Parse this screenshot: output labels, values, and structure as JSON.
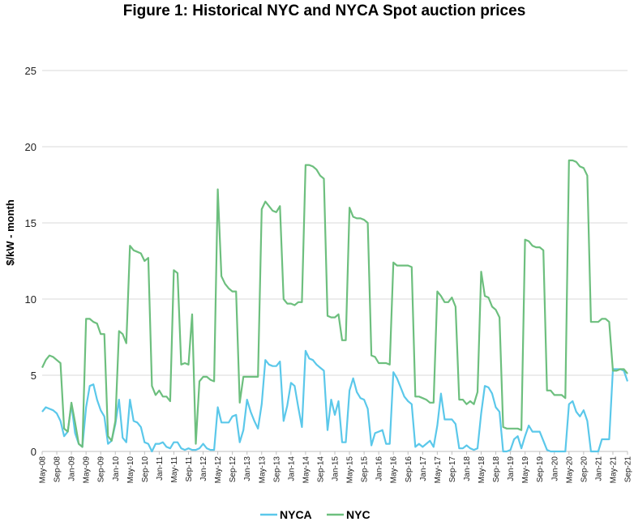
{
  "chart_data": {
    "type": "line",
    "title": "Figure 1: Historical NYC and NYCA Spot auction prices",
    "ylabel": "$/kW - month",
    "xlabel": "",
    "ylim": [
      0,
      25
    ],
    "yticks": [
      0,
      5,
      10,
      15,
      20,
      25
    ],
    "grid": true,
    "legend_position": "bottom-center",
    "x_tick_labels": [
      "May-08",
      "Sep-08",
      "Jan-09",
      "May-09",
      "Sep-09",
      "Jan-10",
      "May-10",
      "Sep-10",
      "Jan-11",
      "May-11",
      "Sep-11",
      "Jan-12",
      "May-12",
      "Sep-12",
      "Jan-13",
      "May-13",
      "Sep-13",
      "Jan-14",
      "May-14",
      "Sep-14",
      "Jan-15",
      "May-15",
      "Sep-15",
      "Jan-16",
      "May-16",
      "Sep-16",
      "Jan-17",
      "May-17",
      "Sep-17",
      "Jan-18",
      "May-18",
      "Sep-18",
      "Jan-19",
      "May-19",
      "Sep-19",
      "Jan-20",
      "May-20",
      "Sep-20",
      "Jan-21",
      "May-21",
      "Sep-21"
    ],
    "x_start": "May-08",
    "x_end": "Sep-21",
    "series": [
      {
        "name": "NYCA",
        "color": "#5bc8ea",
        "values": [
          2.6,
          2.9,
          2.8,
          2.7,
          2.5,
          2.0,
          1.0,
          1.3,
          3.1,
          1.2,
          0.5,
          0.3,
          2.9,
          4.3,
          4.4,
          3.4,
          2.7,
          2.3,
          0.5,
          0.7,
          1.8,
          3.4,
          0.9,
          0.6,
          3.4,
          2.0,
          1.9,
          1.6,
          0.6,
          0.5,
          0.0,
          0.5,
          0.5,
          0.6,
          0.3,
          0.2,
          0.6,
          0.6,
          0.2,
          0.1,
          0.2,
          0.1,
          0.1,
          0.2,
          0.5,
          0.2,
          0.1,
          0.1,
          2.9,
          1.9,
          1.9,
          1.9,
          2.3,
          2.4,
          0.6,
          1.4,
          3.4,
          2.6,
          2.0,
          1.5,
          3.1,
          6.0,
          5.7,
          5.6,
          5.6,
          5.9,
          2.0,
          3.0,
          4.5,
          4.3,
          2.9,
          1.6,
          6.6,
          6.1,
          6.0,
          5.7,
          5.5,
          5.3,
          1.4,
          3.4,
          2.4,
          3.3,
          0.6,
          0.6,
          4.0,
          4.8,
          3.9,
          3.5,
          3.4,
          2.8,
          0.4,
          1.2,
          1.3,
          1.4,
          0.5,
          0.5,
          5.2,
          4.8,
          4.2,
          3.6,
          3.3,
          3.1,
          0.3,
          0.5,
          0.3,
          0.5,
          0.7,
          0.3,
          1.7,
          3.8,
          2.1,
          2.1,
          2.1,
          1.8,
          0.2,
          0.2,
          0.4,
          0.2,
          0.1,
          0.2,
          2.5,
          4.3,
          4.2,
          3.8,
          2.9,
          2.6,
          0.0,
          0.0,
          0.1,
          0.8,
          1.0,
          0.2,
          1.0,
          1.7,
          1.3,
          1.3,
          1.3,
          0.7,
          0.1,
          0.0,
          0.0,
          0.0,
          0.0,
          0.0,
          3.1,
          3.3,
          2.6,
          2.3,
          2.7,
          2.0,
          0.0,
          0.0,
          0.0,
          0.8,
          0.8,
          0.8,
          5.4,
          5.4,
          5.4,
          5.3,
          4.6
        ]
      },
      {
        "name": "NYC",
        "color": "#6dbf7e",
        "values": [
          5.5,
          6.0,
          6.3,
          6.2,
          6.0,
          5.8,
          1.5,
          1.3,
          3.2,
          1.9,
          0.5,
          0.3,
          8.7,
          8.7,
          8.5,
          8.4,
          7.7,
          7.7,
          1.0,
          0.7,
          2.0,
          7.9,
          7.7,
          7.1,
          13.5,
          13.2,
          13.1,
          13.0,
          12.5,
          12.7,
          4.3,
          3.7,
          4.0,
          3.6,
          3.6,
          3.3,
          11.9,
          11.7,
          5.7,
          5.8,
          5.7,
          9.0,
          0.5,
          4.6,
          4.9,
          4.9,
          4.7,
          4.6,
          17.2,
          11.5,
          11.0,
          10.7,
          10.5,
          10.5,
          3.2,
          4.9,
          4.9,
          4.9,
          4.9,
          4.9,
          15.9,
          16.4,
          16.1,
          15.8,
          15.7,
          16.1,
          10.0,
          9.7,
          9.7,
          9.6,
          9.8,
          9.8,
          18.8,
          18.8,
          18.7,
          18.5,
          18.1,
          17.9,
          8.9,
          8.8,
          8.8,
          9.0,
          7.3,
          7.3,
          16.0,
          15.4,
          15.3,
          15.3,
          15.2,
          15.0,
          6.3,
          6.2,
          5.8,
          5.8,
          5.8,
          5.7,
          12.4,
          12.2,
          12.2,
          12.2,
          12.2,
          12.1,
          3.6,
          3.6,
          3.5,
          3.4,
          3.2,
          3.2,
          10.5,
          10.2,
          9.8,
          9.8,
          10.1,
          9.5,
          3.4,
          3.4,
          3.1,
          3.3,
          3.1,
          3.9,
          11.8,
          10.2,
          10.1,
          9.5,
          9.3,
          8.8,
          1.6,
          1.5,
          1.5,
          1.5,
          1.5,
          1.4,
          13.9,
          13.8,
          13.5,
          13.4,
          13.4,
          13.2,
          4.0,
          4.0,
          3.7,
          3.7,
          3.7,
          3.5,
          19.1,
          19.1,
          19.0,
          18.7,
          18.6,
          18.1,
          8.5,
          8.5,
          8.5,
          8.7,
          8.7,
          8.5,
          5.3,
          5.3,
          5.4,
          5.4,
          5.1
        ]
      }
    ]
  }
}
